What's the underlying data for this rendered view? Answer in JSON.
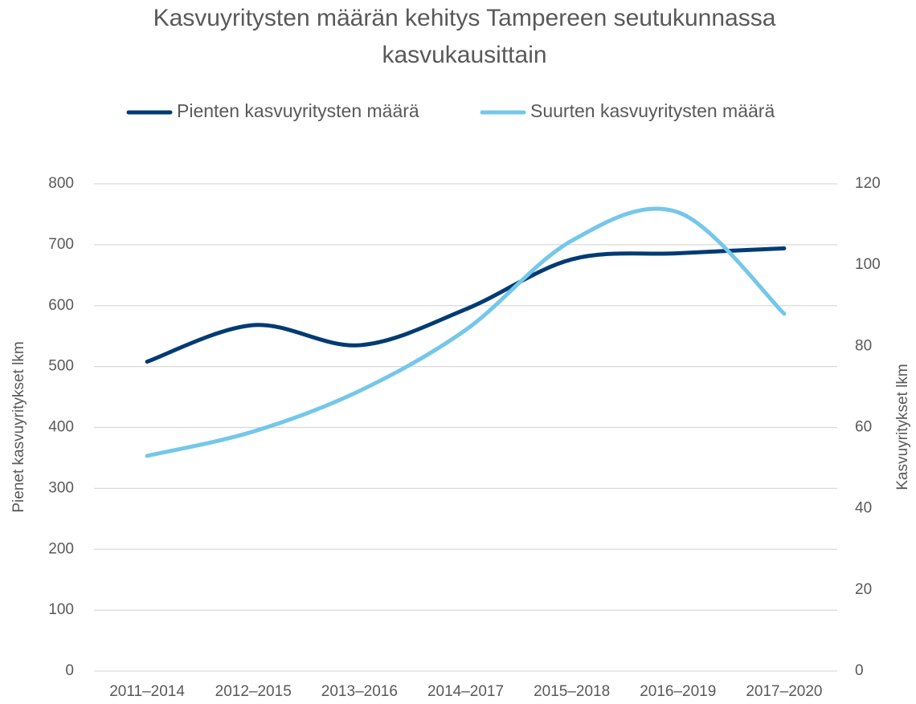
{
  "chart_data": {
    "type": "line",
    "title": [
      "Kasvuyritysten määrän kehitys Tampereen seutukunnassa",
      "kasvukausittain"
    ],
    "categories": [
      "2011–2014",
      "2012–2015",
      "2013–2016",
      "2014–2017",
      "2015–2018",
      "2016–2019",
      "2017–2020"
    ],
    "series": [
      {
        "name": "Pienten kasvuyritysten määrä",
        "color": "#003b73",
        "values": [
          508,
          568,
          535,
          594,
          676,
          686,
          694
        ]
      },
      {
        "name": "Suurten kasvuyritysten määrä",
        "color": "#74c7ea",
        "axis": "y2",
        "values": [
          53,
          59,
          69,
          84,
          106,
          113,
          88
        ]
      }
    ],
    "ylabel": "Pienet kasvuyritykset lkm",
    "y2label": "Kasvuyritykset lkm",
    "ylim": [
      0,
      800
    ],
    "yticks": [
      0,
      100,
      200,
      300,
      400,
      500,
      600,
      700,
      800
    ],
    "y2lim": [
      0,
      120
    ],
    "y2ticks": [
      0,
      20,
      40,
      60,
      80,
      100,
      120
    ],
    "grid": true,
    "legend": "top",
    "smooth": true
  }
}
